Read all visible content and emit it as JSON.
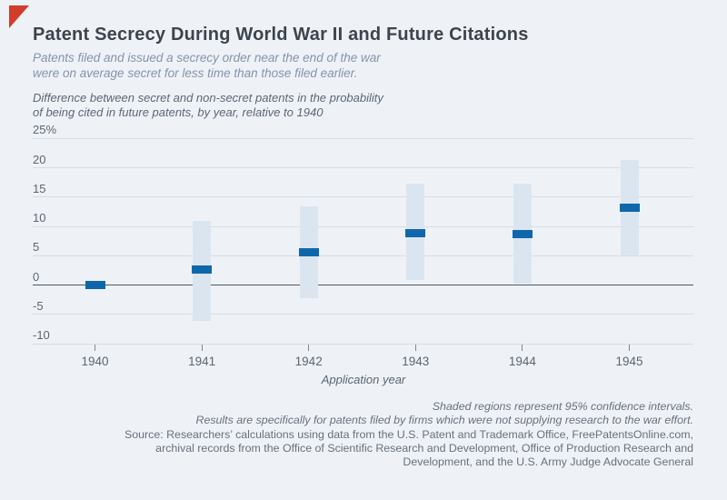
{
  "figure": {
    "corner_accent_color": "#d23c2b",
    "background_color": "#eef2f7"
  },
  "header": {
    "title": "Patent Secrecy During World War II and Future Citations",
    "subtitle_lines": [
      "Patents filed and issued a secrecy order near the end of the war",
      "were on average secret for less time than those filed earlier."
    ]
  },
  "chart_data": {
    "type": "scatter",
    "title": "Patent Secrecy During World War II and Future Citations",
    "note_lines": [
      "Difference between secret and non-secret patents in the probability",
      "of being cited in future patents, by year, relative to 1940"
    ],
    "xlabel": "Application year",
    "categories": [
      "1940",
      "1941",
      "1942",
      "1943",
      "1944",
      "1945"
    ],
    "series": [
      {
        "name": "Point estimate",
        "values": [
          0,
          2.5,
          5.5,
          8.8,
          8.6,
          13.1
        ]
      },
      {
        "name": "95% CI lower bound",
        "values": [
          null,
          -6.2,
          -2.3,
          0.8,
          0.1,
          4.9
        ]
      },
      {
        "name": "95% CI upper bound",
        "values": [
          null,
          10.9,
          13.4,
          17.2,
          17.2,
          21.3
        ]
      }
    ],
    "y_axis": {
      "tick_labels": [
        "25%",
        "20",
        "15",
        "10",
        "5",
        "0",
        "-5",
        "-10"
      ],
      "tick_values": [
        25,
        20,
        15,
        10,
        5,
        0,
        -5,
        -10
      ],
      "ylim": [
        -10,
        25
      ]
    },
    "grid": "horizontal",
    "legend": "none",
    "colors": {
      "estimate": "#0f67ab",
      "ci_band": "#dbe5ef"
    }
  },
  "footer": {
    "note_lines": [
      "Shaded regions represent 95% confidence intervals.",
      "Results are specifically for patents filed by firms which were not supplying research to the war effort."
    ],
    "source_lines": [
      "Source: Researchers’ calculations using data from the U.S. Patent and Trademark Office, FreePatentsOnline.com,",
      "archival records from the Office of Scientific Research and Development, Office of Production Research and",
      "Development, and the U.S. Army Judge Advocate General"
    ]
  }
}
